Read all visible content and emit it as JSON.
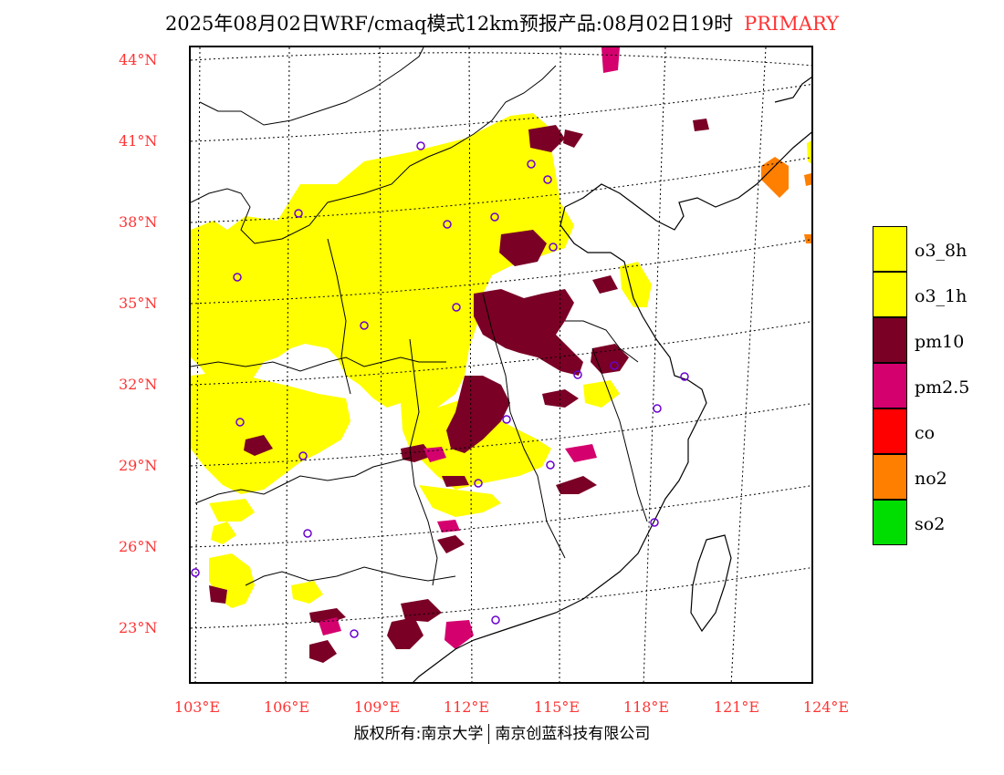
{
  "title": {
    "main": "2025年08月02日WRF/cmaq模式12km预报产品:08月02日19时",
    "tag": "PRIMARY",
    "tag_color": "#ff3333"
  },
  "axes": {
    "lat_labels": [
      "44°N",
      "41°N",
      "38°N",
      "35°N",
      "32°N",
      "29°N",
      "26°N",
      "23°N"
    ],
    "lon_labels": [
      "103°E",
      "106°E",
      "109°E",
      "112°E",
      "115°E",
      "118°E",
      "121°E",
      "124°E"
    ],
    "label_color": "#ff3333"
  },
  "legend": {
    "items": [
      {
        "label": "o3_8h",
        "color": "#ffff00"
      },
      {
        "label": "o3_1h",
        "color": "#ffff00"
      },
      {
        "label": "pm10",
        "color": "#7a0026"
      },
      {
        "label": "pm2.5",
        "color": "#d4006e"
      },
      {
        "label": "co",
        "color": "#ff0000"
      },
      {
        "label": "no2",
        "color": "#ff7f00"
      },
      {
        "label": "so2",
        "color": "#00dd00"
      }
    ]
  },
  "map": {
    "layers": [
      "o3-region",
      "pm10-region",
      "pm25-region",
      "no2-region",
      "coastline",
      "province-borders",
      "graticule",
      "city-markers"
    ]
  },
  "copyright": {
    "left": "版权所有:南京大学",
    "right": "南京创蓝科技有限公司"
  }
}
